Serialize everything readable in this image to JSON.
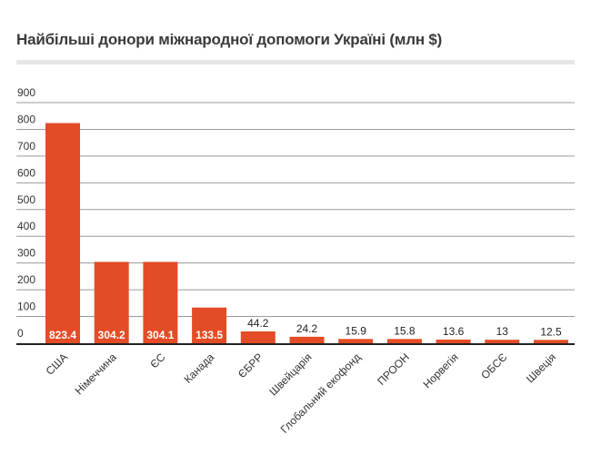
{
  "chart_data": {
    "type": "bar",
    "title": "Найбільші донори міжнародної допомоги Україні (млн $)",
    "categories": [
      "США",
      "Німеччина",
      "ЄС",
      "Канада",
      "ЄБРР",
      "Швейцарія",
      "Глобальний екофонд",
      "ПРООН",
      "Норвегія",
      "ОБСЄ",
      "Швеція"
    ],
    "values": [
      823.4,
      304.2,
      304.1,
      133.5,
      44.2,
      24.2,
      15.9,
      15.8,
      13.6,
      13,
      12.5
    ],
    "value_labels": [
      "823.4",
      "304.2",
      "304.1",
      "133.5",
      "44.2",
      "24.2",
      "15.9",
      "15.8",
      "13.6",
      "13",
      "12.5"
    ],
    "ylim": [
      0,
      900
    ],
    "yticks": [
      "0",
      "100",
      "200",
      "300",
      "400",
      "500",
      "600",
      "700",
      "800",
      "900"
    ],
    "xlabel": "",
    "ylabel": "",
    "grid": true,
    "bar_color": "#e34c26"
  }
}
